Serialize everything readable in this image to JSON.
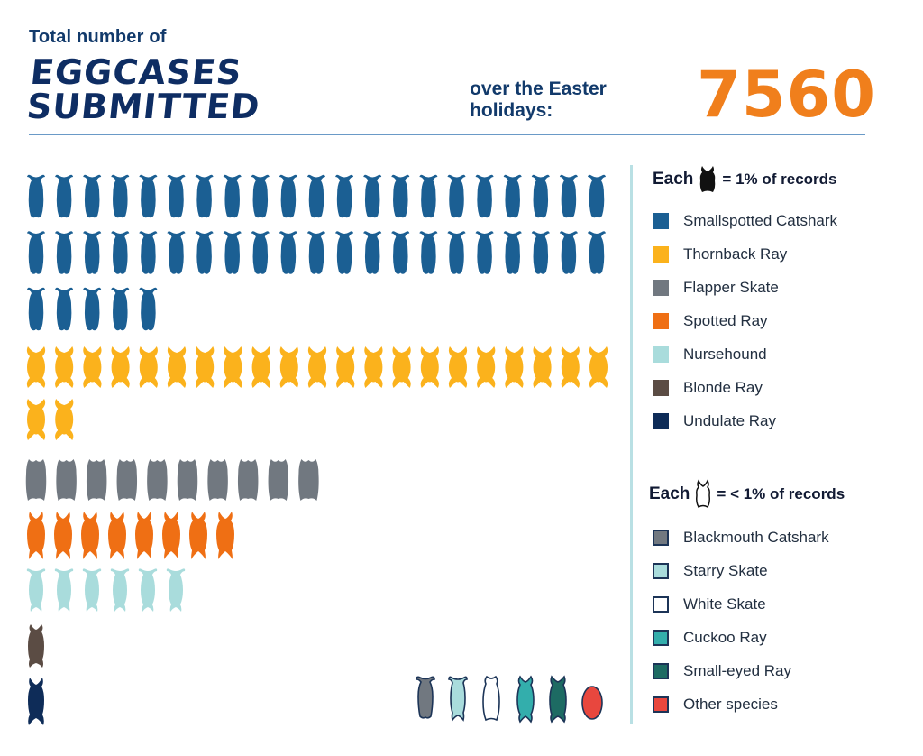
{
  "header": {
    "line1": "Total number of",
    "headline": "EGGCASES SUBMITTED",
    "subline": "over the Easter holidays:",
    "total": "7560"
  },
  "legend_major": {
    "title_prefix": "Each",
    "title_suffix": "= 1% of records",
    "icon": "eggcase-icon-filled",
    "items": [
      {
        "label": "Smallspotted Catshark",
        "color": "#1b5f93"
      },
      {
        "label": "Thornback Ray",
        "color": "#fbb21c"
      },
      {
        "label": "Flapper Skate",
        "color": "#717880"
      },
      {
        "label": "Spotted Ray",
        "color": "#ef6f14"
      },
      {
        "label": "Nursehound",
        "color": "#a9dcdc"
      },
      {
        "label": "Blonde Ray",
        "color": "#5b4c44"
      },
      {
        "label": "Undulate Ray",
        "color": "#0e2c58"
      }
    ]
  },
  "legend_minor": {
    "title_prefix": "Each",
    "title_suffix": "= < 1% of records",
    "icon": "eggcase-icon-outline",
    "items": [
      {
        "label": "Blackmouth Catshark",
        "color": "#717880"
      },
      {
        "label": "Starry Skate",
        "color": "#a9dcdc"
      },
      {
        "label": "White Skate",
        "color": "#ffffff"
      },
      {
        "label": "Cuckoo Ray",
        "color": "#33aeac"
      },
      {
        "label": "Small-eyed Ray",
        "color": "#1d6b63"
      },
      {
        "label": "Other species",
        "color": "#e8473e"
      }
    ]
  },
  "chart_data": {
    "type": "pictograph",
    "unit": "1% of records",
    "series": [
      {
        "name": "Smallspotted Catshark",
        "values": [
          47
        ],
        "color": "#1b5f93",
        "icon": "catshark-eggcase"
      },
      {
        "name": "Thornback Ray",
        "values": [
          23
        ],
        "color": "#fbb21c",
        "icon": "thornback-eggcase"
      },
      {
        "name": "Flapper Skate",
        "values": [
          10
        ],
        "color": "#717880",
        "icon": "skate-eggcase"
      },
      {
        "name": "Spotted Ray",
        "values": [
          8
        ],
        "color": "#ef6f14",
        "icon": "spotted-ray-eggcase"
      },
      {
        "name": "Nursehound",
        "values": [
          6
        ],
        "color": "#a9dcdc",
        "icon": "nursehound-eggcase"
      },
      {
        "name": "Blonde Ray",
        "values": [
          1
        ],
        "color": "#5b4c44",
        "icon": "blonde-ray-eggcase"
      },
      {
        "name": "Undulate Ray",
        "values": [
          1
        ],
        "color": "#0e2c58",
        "icon": "undulate-ray-eggcase"
      }
    ],
    "minor_species": [
      {
        "name": "Blackmouth Catshark",
        "color": "#717880"
      },
      {
        "name": "Starry Skate",
        "color": "#a9dcdc"
      },
      {
        "name": "White Skate",
        "color": "#ffffff"
      },
      {
        "name": "Cuckoo Ray",
        "color": "#33aeac"
      },
      {
        "name": "Small-eyed Ray",
        "color": "#1d6b63"
      },
      {
        "name": "Other species",
        "color": "#e8473e"
      }
    ]
  }
}
